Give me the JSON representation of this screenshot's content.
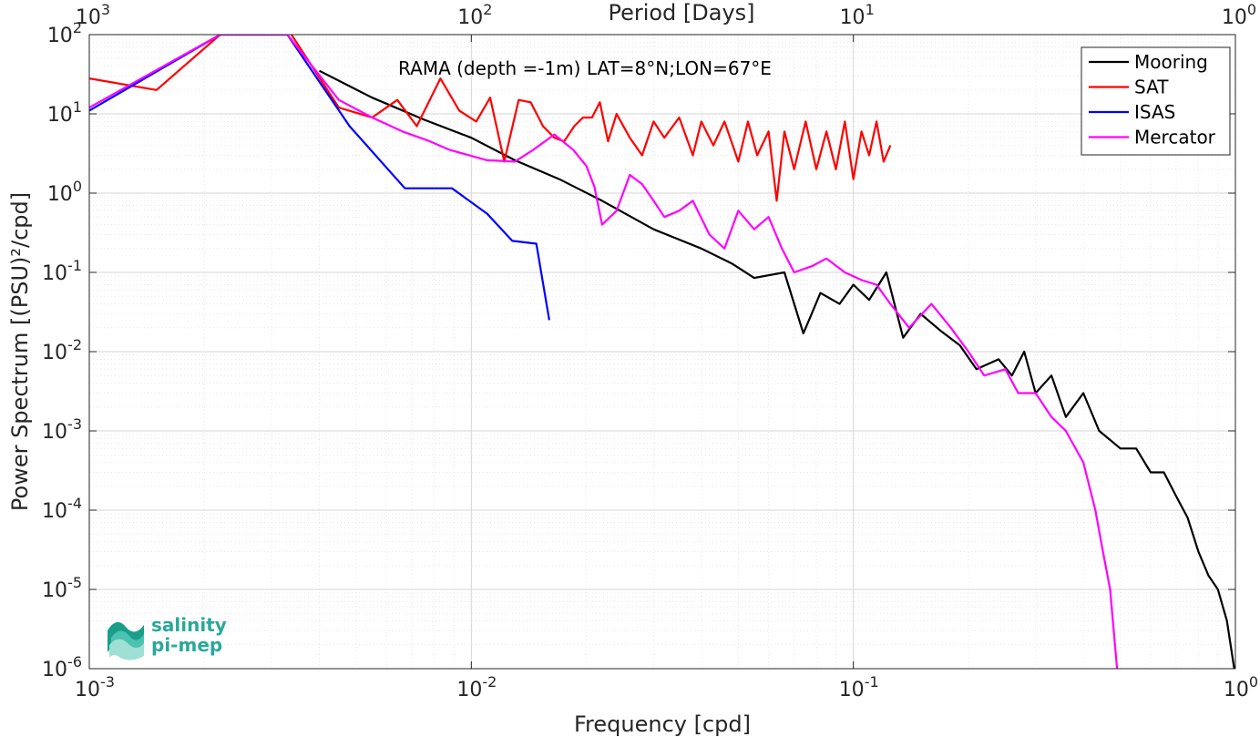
{
  "chart_data": {
    "type": "line",
    "title": "RAMA (depth =-1m) LAT=8°N;LON=67°E",
    "xlabel": "Frequency [cpd]",
    "ylabel": "Power Spectrum [(PSU)²/cpd]",
    "top_xlabel": "Period [Days]",
    "x_scale": "log",
    "y_scale": "log",
    "xlim": [
      0.001,
      1
    ],
    "ylim": [
      1e-06,
      100
    ],
    "grid": true,
    "legend_position": "top-right",
    "x_ticks": [
      {
        "value": 0.001,
        "base": "10",
        "exp": "-3"
      },
      {
        "value": 0.01,
        "base": "10",
        "exp": "-2"
      },
      {
        "value": 0.1,
        "base": "10",
        "exp": "-1"
      },
      {
        "value": 1,
        "base": "10",
        "exp": "0"
      }
    ],
    "top_ticks": [
      {
        "value": 0.001,
        "base": "10",
        "exp": "3"
      },
      {
        "value": 0.01,
        "base": "10",
        "exp": "2"
      },
      {
        "value": 0.1,
        "base": "10",
        "exp": "1"
      },
      {
        "value": 1,
        "base": "10",
        "exp": "0"
      }
    ],
    "y_ticks": [
      {
        "value": 100,
        "base": "10",
        "exp": "2"
      },
      {
        "value": 10,
        "base": "10",
        "exp": "1"
      },
      {
        "value": 1,
        "base": "10",
        "exp": "0"
      },
      {
        "value": 0.1,
        "base": "10",
        "exp": "-1"
      },
      {
        "value": 0.01,
        "base": "10",
        "exp": "-2"
      },
      {
        "value": 0.001,
        "base": "10",
        "exp": "-3"
      },
      {
        "value": 0.0001,
        "base": "10",
        "exp": "-4"
      },
      {
        "value": 1e-05,
        "base": "10",
        "exp": "-5"
      },
      {
        "value": 1e-06,
        "base": "10",
        "exp": "-6"
      }
    ],
    "series": [
      {
        "name": "Mooring",
        "color": "#000000",
        "x": [
          0.004,
          0.0055,
          0.0075,
          0.01,
          0.013,
          0.017,
          0.022,
          0.03,
          0.04,
          0.048,
          0.055,
          0.066,
          0.074,
          0.082,
          0.092,
          0.1,
          0.11,
          0.122,
          0.135,
          0.15,
          0.17,
          0.19,
          0.21,
          0.24,
          0.26,
          0.28,
          0.3,
          0.33,
          0.36,
          0.4,
          0.44,
          0.5,
          0.55,
          0.6,
          0.65,
          0.7,
          0.75,
          0.8,
          0.85,
          0.9,
          0.95,
          1.0
        ],
        "y": [
          35,
          16,
          8.5,
          5,
          2.6,
          1.5,
          0.8,
          0.35,
          0.2,
          0.13,
          0.085,
          0.1,
          0.017,
          0.055,
          0.04,
          0.07,
          0.045,
          0.1,
          0.015,
          0.03,
          0.018,
          0.012,
          0.006,
          0.008,
          0.005,
          0.01,
          0.003,
          0.005,
          0.0015,
          0.003,
          0.001,
          0.0006,
          0.0006,
          0.0003,
          0.0003,
          0.00015,
          8e-05,
          3e-05,
          1.5e-05,
          1e-05,
          4e-06,
          8e-07
        ]
      },
      {
        "name": "SAT",
        "color": "#ff0000",
        "x": [
          0.001,
          0.0015,
          0.0022,
          0.0033,
          0.0045,
          0.0055,
          0.0064,
          0.0072,
          0.0083,
          0.0093,
          0.0103,
          0.0112,
          0.0122,
          0.0133,
          0.0143,
          0.0154,
          0.0165,
          0.0175,
          0.0186,
          0.0196,
          0.0207,
          0.0217,
          0.0228,
          0.024,
          0.026,
          0.028,
          0.03,
          0.032,
          0.035,
          0.038,
          0.04,
          0.043,
          0.046,
          0.05,
          0.053,
          0.056,
          0.06,
          0.063,
          0.066,
          0.07,
          0.075,
          0.08,
          0.085,
          0.09,
          0.095,
          0.1,
          0.105,
          0.11,
          0.115,
          0.12,
          0.125
        ],
        "y": [
          28,
          20,
          100,
          120,
          12,
          9,
          15,
          7,
          28,
          11,
          8,
          16,
          2.5,
          15,
          14,
          7,
          5,
          4.5,
          7,
          9,
          9,
          14,
          4.5,
          10,
          5,
          3,
          8,
          5,
          9,
          3,
          8,
          4,
          8,
          2.5,
          8,
          3,
          6,
          0.8,
          6,
          2,
          8,
          2,
          6,
          2,
          8,
          1.5,
          6,
          3,
          8,
          2.5,
          4
        ]
      },
      {
        "name": "ISAS",
        "color": "#0000ff",
        "x": [
          0.001,
          0.0022,
          0.0033,
          0.0048,
          0.0067,
          0.0089,
          0.011,
          0.0128,
          0.0148,
          0.016
        ],
        "y": [
          11,
          100,
          100,
          7,
          1.15,
          1.15,
          0.55,
          0.25,
          0.23,
          0.025
        ]
      },
      {
        "name": "Mercator",
        "color": "#ff00ff",
        "x": [
          0.001,
          0.0022,
          0.0033,
          0.0045,
          0.0055,
          0.0066,
          0.0077,
          0.0088,
          0.011,
          0.013,
          0.0145,
          0.0165,
          0.0185,
          0.02,
          0.021,
          0.022,
          0.024,
          0.026,
          0.028,
          0.03,
          0.032,
          0.035,
          0.038,
          0.042,
          0.046,
          0.05,
          0.055,
          0.06,
          0.065,
          0.07,
          0.078,
          0.085,
          0.095,
          0.105,
          0.115,
          0.125,
          0.14,
          0.16,
          0.18,
          0.2,
          0.22,
          0.25,
          0.27,
          0.3,
          0.33,
          0.36,
          0.4,
          0.43,
          0.45,
          0.47,
          0.49
        ],
        "y": [
          12,
          100,
          100,
          15,
          9,
          6,
          4.6,
          3.5,
          2.6,
          2.5,
          3.5,
          5.5,
          3.5,
          2.2,
          1.2,
          0.4,
          0.6,
          1.7,
          1.3,
          0.8,
          0.5,
          0.6,
          0.8,
          0.3,
          0.2,
          0.6,
          0.35,
          0.5,
          0.2,
          0.1,
          0.12,
          0.15,
          0.1,
          0.08,
          0.07,
          0.04,
          0.02,
          0.04,
          0.02,
          0.01,
          0.005,
          0.006,
          0.003,
          0.003,
          0.0015,
          0.001,
          0.0004,
          0.0001,
          3e-05,
          1e-05,
          1e-06
        ]
      }
    ]
  },
  "logo": {
    "line1": "salinity",
    "line2": "pi-mep"
  }
}
